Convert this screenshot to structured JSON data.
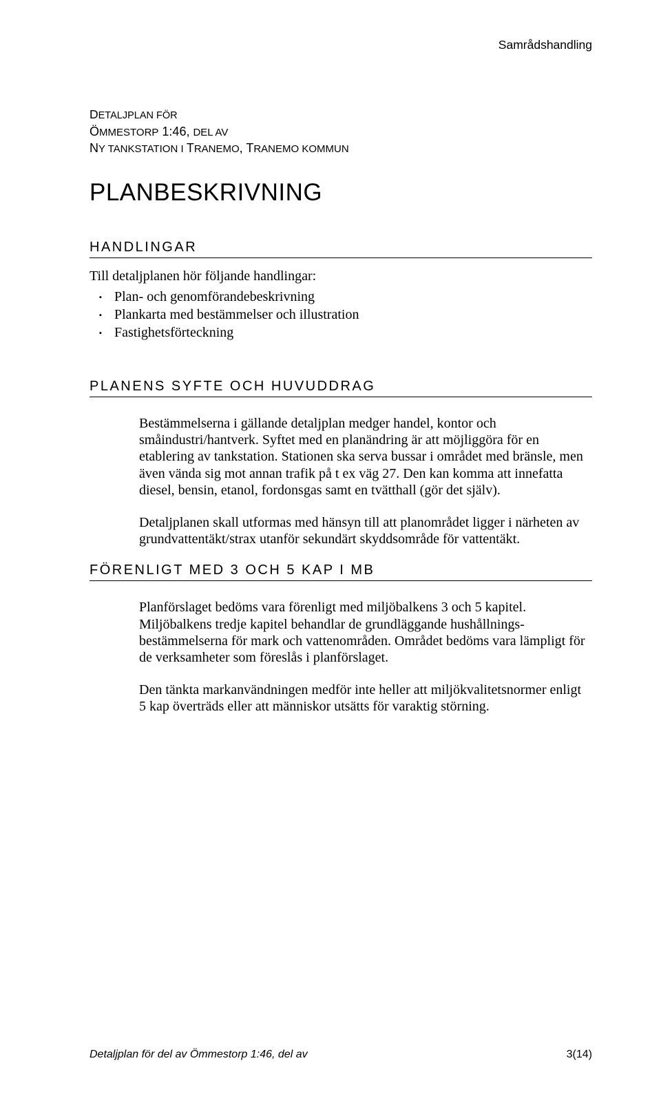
{
  "header": {
    "running_head": "Samrådshandling"
  },
  "meta": {
    "line1_prefix": "D",
    "line1_rest": "ETALJPLAN FÖR",
    "line2_prefix": "Ö",
    "line2_rest_a": "MMESTORP",
    "line2_nums": " 1:46, ",
    "line2_rest_b": "DEL AV",
    "line3_prefix": "N",
    "line3_rest_a": "Y TANKSTATION I ",
    "line3_mid_big1": "T",
    "line3_mid_small1": "RANEMO",
    "line3_sep": ", ",
    "line3_mid_big2": "T",
    "line3_mid_small2": "RANEMO KOMMUN"
  },
  "title": "PLANBESKRIVNING",
  "sections": {
    "handlingar": {
      "heading": "HANDLINGAR",
      "intro": "Till detaljplanen hör följande handlingar:",
      "items": [
        "Plan- och genomförandebeskrivning",
        "Plankarta med bestämmelser och illustration",
        "Fastighetsförteckning"
      ]
    },
    "syfte": {
      "heading": "PLANENS SYFTE OCH HUVUDDRAG",
      "p1": "Bestämmelserna i gällande detaljplan medger handel, kontor och småindustri/hantverk. Syftet med en planändring är att möjliggöra för en etablering av tankstation. Stationen ska serva bussar i området med bränsle, men även vända sig mot annan trafik på t ex väg 27. Den kan komma att innefatta diesel, bensin, etanol, fordonsgas samt en tvätthall (gör det själv).",
      "p2": "Detaljplanen skall utformas med hänsyn till att planområdet ligger i närheten av grundvattentäkt/strax utanför sekundärt skyddsområde för vattentäkt."
    },
    "forenligt": {
      "heading": "FÖRENLIGT MED 3 OCH 5 KAP I MB",
      "p1": "Planförslaget bedöms vara förenligt med miljöbalkens 3 och 5 kapitel. Miljöbalkens tredje kapitel behandlar de grundläggande hushållnings-bestämmelserna för mark och vattenområden. Området bedöms vara lämpligt för de verksamheter som föreslås i planförslaget.",
      "p2": "Den tänkta markanvändningen medför inte heller att miljökvalitetsnormer enligt 5 kap överträds eller att människor utsätts för varaktig störning."
    }
  },
  "footer": {
    "left": "Detaljplan för del av Ömmestorp 1:46, del av",
    "right": "3(14)"
  }
}
